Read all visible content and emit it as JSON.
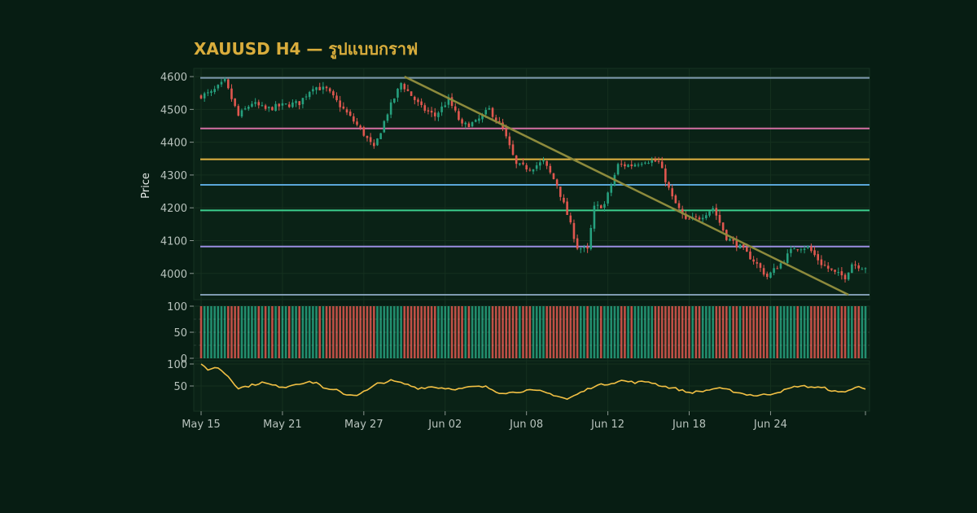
{
  "chart_data": {
    "type": "candlestick",
    "title": "XAUUSD H4 — รูปแบบกราฟ",
    "ylabel": "Price",
    "ylim": [
      3920,
      4625
    ],
    "yticks": [
      4000,
      4100,
      4200,
      4300,
      4400,
      4500,
      4600
    ],
    "xlim": [
      0,
      196
    ],
    "xticks": [
      {
        "label": "May 15",
        "x": 0
      },
      {
        "label": "May 21",
        "x": 24
      },
      {
        "label": "May 27",
        "x": 48
      },
      {
        "label": "Jun 02",
        "x": 72
      },
      {
        "label": "Jun 08",
        "x": 96
      },
      {
        "label": "Jun 12",
        "x": 120
      },
      {
        "label": "Jun 18",
        "x": 144
      },
      {
        "label": "Jun 24",
        "x": 168
      }
    ],
    "colors": {
      "up": "#26a07e",
      "down": "#e0574f",
      "background": "#0a2216",
      "grid": "#15301f",
      "trendline": "#8d8a3c",
      "oscillator": "#f2c044"
    },
    "horizontal_levels": [
      {
        "value": 4596,
        "color": "#7f9bb0"
      },
      {
        "value": 4442,
        "color": "#d470a3"
      },
      {
        "value": 4348,
        "color": "#e3b341"
      },
      {
        "value": 4270,
        "color": "#5aa6d8"
      },
      {
        "value": 4192,
        "color": "#3ccf8e"
      },
      {
        "value": 4082,
        "color": "#9a8ee0"
      },
      {
        "value": 3935,
        "color": "#7f9bb0"
      }
    ],
    "trendline": {
      "from": {
        "x": 60,
        "y": 4600
      },
      "to": {
        "x": 191,
        "y": 3935
      }
    },
    "price_anchors": [
      [
        0,
        4540
      ],
      [
        4,
        4550
      ],
      [
        8,
        4585
      ],
      [
        12,
        4480
      ],
      [
        16,
        4520
      ],
      [
        20,
        4500
      ],
      [
        24,
        4510
      ],
      [
        30,
        4520
      ],
      [
        34,
        4570
      ],
      [
        38,
        4560
      ],
      [
        43,
        4500
      ],
      [
        48,
        4440
      ],
      [
        52,
        4380
      ],
      [
        56,
        4490
      ],
      [
        60,
        4580
      ],
      [
        66,
        4505
      ],
      [
        70,
        4480
      ],
      [
        74,
        4530
      ],
      [
        78,
        4450
      ],
      [
        82,
        4460
      ],
      [
        86,
        4500
      ],
      [
        90,
        4440
      ],
      [
        94,
        4330
      ],
      [
        98,
        4320
      ],
      [
        102,
        4340
      ],
      [
        106,
        4270
      ],
      [
        109,
        4180
      ],
      [
        112,
        4080
      ],
      [
        115,
        4070
      ],
      [
        117,
        4200
      ],
      [
        120,
        4210
      ],
      [
        124,
        4330
      ],
      [
        128,
        4330
      ],
      [
        132,
        4345
      ],
      [
        136,
        4340
      ],
      [
        140,
        4230
      ],
      [
        144,
        4160
      ],
      [
        148,
        4170
      ],
      [
        152,
        4200
      ],
      [
        156,
        4110
      ],
      [
        160,
        4080
      ],
      [
        164,
        4040
      ],
      [
        168,
        3990
      ],
      [
        172,
        4030
      ],
      [
        176,
        4080
      ],
      [
        180,
        4080
      ],
      [
        184,
        4030
      ],
      [
        188,
        4000
      ],
      [
        191,
        3990
      ],
      [
        193,
        4030
      ],
      [
        196,
        4020
      ]
    ],
    "oscillator_ylim": [
      0,
      100
    ],
    "oscillator_yticks": [
      50,
      100
    ],
    "oscillator_anchors": [
      [
        0,
        100
      ],
      [
        2,
        88
      ],
      [
        5,
        92
      ],
      [
        8,
        72
      ],
      [
        11,
        45
      ],
      [
        14,
        50
      ],
      [
        18,
        58
      ],
      [
        22,
        50
      ],
      [
        25,
        48
      ],
      [
        28,
        55
      ],
      [
        31,
        58
      ],
      [
        34,
        58
      ],
      [
        37,
        42
      ],
      [
        40,
        40
      ],
      [
        43,
        30
      ],
      [
        46,
        30
      ],
      [
        49,
        40
      ],
      [
        52,
        55
      ],
      [
        56,
        62
      ],
      [
        60,
        55
      ],
      [
        64,
        45
      ],
      [
        68,
        48
      ],
      [
        72,
        45
      ],
      [
        76,
        43
      ],
      [
        80,
        48
      ],
      [
        84,
        48
      ],
      [
        88,
        35
      ],
      [
        92,
        35
      ],
      [
        96,
        40
      ],
      [
        100,
        38
      ],
      [
        104,
        30
      ],
      [
        108,
        20
      ],
      [
        112,
        35
      ],
      [
        116,
        50
      ],
      [
        120,
        55
      ],
      [
        124,
        62
      ],
      [
        128,
        58
      ],
      [
        132,
        60
      ],
      [
        136,
        50
      ],
      [
        140,
        44
      ],
      [
        144,
        35
      ],
      [
        148,
        38
      ],
      [
        152,
        45
      ],
      [
        156,
        40
      ],
      [
        160,
        32
      ],
      [
        164,
        28
      ],
      [
        168,
        32
      ],
      [
        172,
        40
      ],
      [
        176,
        50
      ],
      [
        180,
        48
      ],
      [
        184,
        45
      ],
      [
        188,
        35
      ],
      [
        191,
        40
      ],
      [
        194,
        48
      ],
      [
        196,
        45
      ]
    ],
    "volume_ylim": [
      0,
      100
    ],
    "volume_yticks": [
      0,
      50,
      100
    ]
  }
}
